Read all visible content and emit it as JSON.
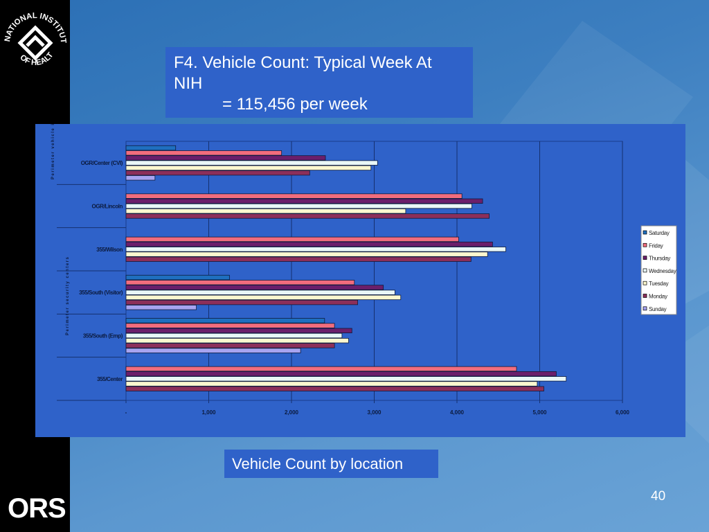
{
  "slide": {
    "title_line1": "F4.  Vehicle Count:  Typical Week At NIH",
    "title_line2": "= 115,456  per week",
    "caption": "Vehicle Count by location",
    "page_number": "40"
  },
  "logos": {
    "nih_text": "NATIONAL INSTITUTES OF HEALTH",
    "ors_text": "ORS"
  },
  "colors": {
    "panel": "#2f62c9",
    "plot_area": "#2f62c9"
  },
  "chart_data": {
    "type": "bar",
    "orientation": "horizontal",
    "categories": [
      "OGR/Center (CVI)",
      "OGR/Lincoln",
      "355/Wilson",
      "355/South (Visitor)",
      "355/South (Emp)",
      "355/Center"
    ],
    "group_labels": [
      "Perimeter vehicle inspections",
      "Perimeter security centers"
    ],
    "series": [
      {
        "name": "Saturday",
        "color": "#1f6fbf",
        "values": [
          600,
          0,
          0,
          1250,
          2400,
          0
        ]
      },
      {
        "name": "Friday",
        "color": "#f26d7d",
        "values": [
          1880,
          4060,
          4020,
          2760,
          2520,
          4720
        ]
      },
      {
        "name": "Thursday",
        "color": "#6b1f6b",
        "values": [
          2410,
          4310,
          4430,
          3110,
          2730,
          5200
        ]
      },
      {
        "name": "Wednesday",
        "color": "#e9f7f7",
        "values": [
          3040,
          4180,
          4590,
          3250,
          2610,
          5320
        ]
      },
      {
        "name": "Tuesday",
        "color": "#fbf7cf",
        "values": [
          2960,
          3380,
          4370,
          3320,
          2690,
          4970
        ]
      },
      {
        "name": "Monday",
        "color": "#8c2f5a",
        "values": [
          2220,
          4390,
          4170,
          2800,
          2520,
          5050
        ]
      },
      {
        "name": "Sunday",
        "color": "#a7a3f0",
        "values": [
          350,
          0,
          0,
          850,
          2110,
          0
        ]
      }
    ],
    "x_ticks": [
      "-",
      "1,000",
      "2,000",
      "3,000",
      "4,000",
      "5,000",
      "6,000"
    ],
    "xlim": [
      0,
      6000
    ],
    "grid": true,
    "legend_position": "right"
  }
}
